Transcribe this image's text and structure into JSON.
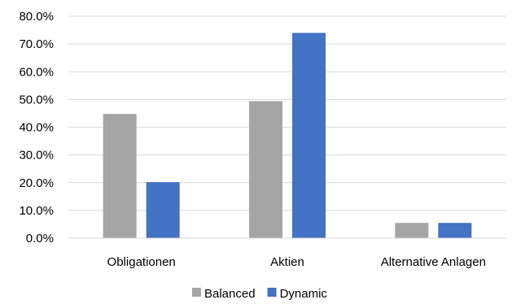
{
  "chart_data": {
    "type": "bar",
    "title": "",
    "xlabel": "",
    "ylabel": "",
    "categories": [
      "Obligationen",
      "Aktien",
      "Alternative Anlagen"
    ],
    "series": [
      {
        "name": "Balanced",
        "values": [
          44.8,
          49.4,
          5.5
        ],
        "color": "#a5a5a5"
      },
      {
        "name": "Dynamic",
        "values": [
          20.2,
          74.0,
          5.5
        ],
        "color": "#4472c4"
      }
    ],
    "ylim": [
      0,
      80
    ],
    "yticks": [
      "0.0%",
      "10.0%",
      "20.0%",
      "30.0%",
      "40.0%",
      "50.0%",
      "60.0%",
      "70.0%",
      "80.0%"
    ],
    "grid": true,
    "legend_position": "bottom"
  }
}
